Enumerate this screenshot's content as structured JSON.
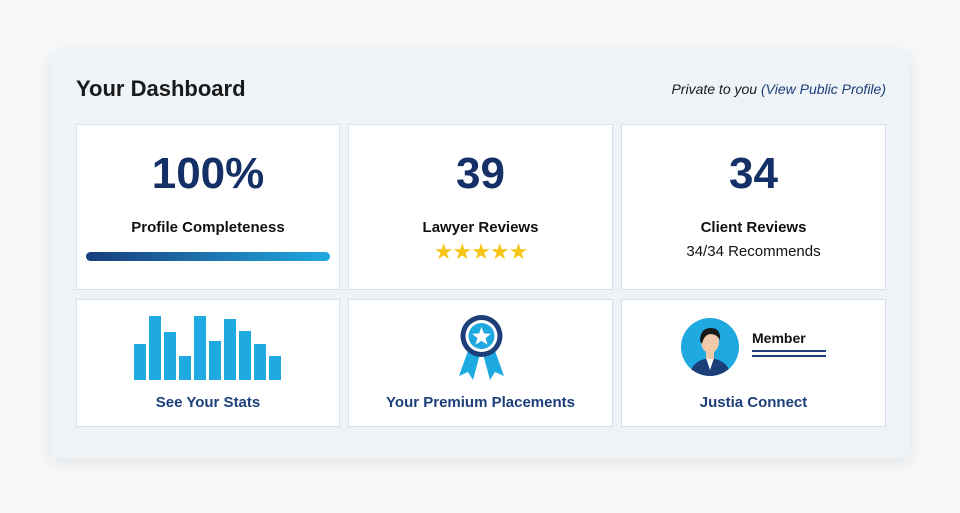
{
  "header": {
    "title": "Your Dashboard",
    "private_text": "Private to you",
    "public_link_open": "(",
    "public_link": "View Public Profile",
    "public_link_close": ")"
  },
  "cards": {
    "profile": {
      "value": "100%",
      "label": "Profile Completeness",
      "progress": 1.0
    },
    "lawyer_reviews": {
      "value": "39",
      "label": "Lawyer Reviews",
      "stars": "★★★★★"
    },
    "client_reviews": {
      "value": "34",
      "label": "Client Reviews",
      "sub": "34/34 Recommends"
    },
    "stats": {
      "label": "See Your Stats"
    },
    "premium": {
      "label": "Your Premium Placements"
    },
    "connect": {
      "label": "Justia Connect",
      "badge": "Member"
    }
  },
  "colors": {
    "accent": "#1c3f7a",
    "number": "#143066",
    "bar": "#1fa9e1",
    "star": "#f5c518"
  },
  "icons": [
    "bar-chart-icon",
    "award-ribbon-icon",
    "member-avatar-icon"
  ]
}
